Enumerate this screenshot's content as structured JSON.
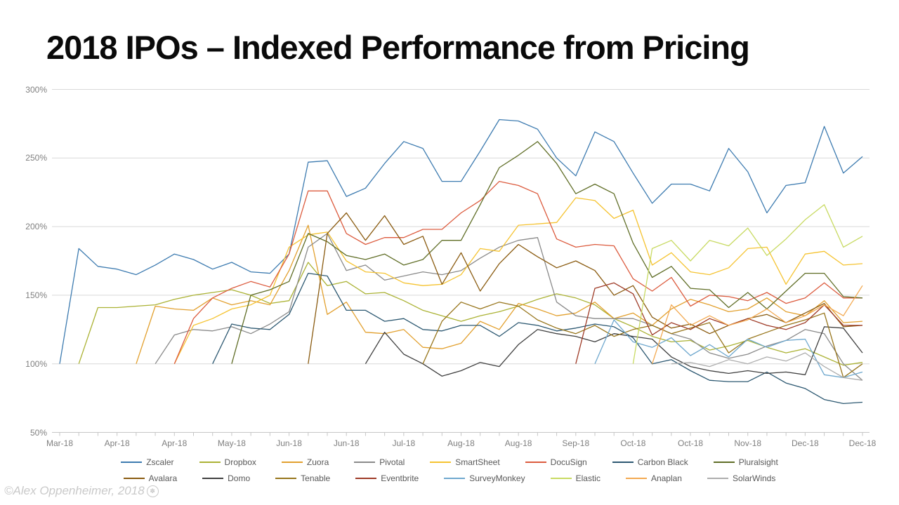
{
  "title": "2018 IPOs – Indexed Performance from Pricing",
  "copyright": {
    "text": "©Alex Oppenheimer, 2018",
    "icon": "flower-ornament-icon"
  },
  "colors": {
    "background": "#FFFFFF",
    "title_text": "#0A0A0A",
    "gridline": "#D9D9D9",
    "axis_line": "#C6C6C6",
    "axis_tick_text": "#7F7F7F",
    "legend_text": "#595959",
    "copyright_text": "#C9C9C9"
  },
  "chart_data": {
    "type": "line",
    "title": "2018 IPOs – Indexed Performance from Pricing",
    "grid": true,
    "legend_position": "bottom",
    "y_axis": {
      "min": 50,
      "max": 300,
      "step": 50,
      "unit": "%",
      "tick_labels": [
        "300%",
        "250%",
        "200%",
        "150%",
        "100%",
        "50%"
      ],
      "tick_values": [
        300,
        250,
        200,
        150,
        100,
        50
      ]
    },
    "x_axis": {
      "weeks_total": 43,
      "tick_label_positions": [
        0,
        3,
        6,
        9,
        12,
        15,
        18,
        21,
        24,
        27,
        30,
        33,
        36,
        39,
        42
      ],
      "tick_labels": [
        "Mar-18",
        "Apr-18",
        "Apr-18",
        "May-18",
        "Jun-18",
        "Jun-18",
        "Jul-18",
        "Aug-18",
        "Aug-18",
        "Sep-18",
        "Oct-18",
        "Oct-18",
        "Nov-18",
        "Dec-18",
        "Dec-18"
      ]
    },
    "series": [
      {
        "name": "Zscaler",
        "color": "#3D7BB0",
        "start_week": 0,
        "values": [
          100,
          184,
          171,
          169,
          165,
          172,
          180,
          176,
          169,
          174,
          167,
          166,
          180,
          247,
          248,
          222,
          228,
          246,
          262,
          257,
          233,
          233,
          255,
          278,
          277,
          271,
          250,
          237,
          269,
          262,
          239,
          217,
          231,
          231,
          226,
          257,
          240,
          210,
          230,
          232,
          273,
          239,
          251
        ]
      },
      {
        "name": "Dropbox",
        "color": "#ABB234",
        "start_week": 1,
        "values": [
          100,
          141,
          141,
          142,
          143,
          147,
          150,
          152,
          154,
          150,
          144,
          146,
          174,
          157,
          160,
          151,
          152,
          146,
          139,
          135,
          131,
          135,
          138,
          142,
          147,
          151,
          148,
          143,
          133,
          127,
          120,
          116,
          117,
          110,
          113,
          117,
          112,
          108,
          111,
          105,
          99,
          101
        ]
      },
      {
        "name": "Zuora",
        "color": "#E2A02E",
        "start_week": 4,
        "values": [
          100,
          142,
          140,
          139,
          148,
          143,
          146,
          143,
          168,
          201,
          136,
          145,
          123,
          122,
          125,
          112,
          111,
          115,
          131,
          125,
          144,
          140,
          135,
          137,
          145,
          133,
          137,
          128,
          140,
          147,
          143,
          138,
          140,
          148,
          138,
          135,
          146,
          130,
          131
        ]
      },
      {
        "name": "Pivotal",
        "color": "#8A8A8A",
        "start_week": 5,
        "values": [
          100,
          121,
          125,
          124,
          127,
          122,
          129,
          138,
          185,
          195,
          168,
          172,
          161,
          164,
          167,
          165,
          168,
          177,
          185,
          190,
          192,
          145,
          135,
          133,
          133,
          133,
          128,
          122,
          118,
          108,
          104,
          107,
          113,
          117,
          125,
          122,
          100,
          88
        ]
      },
      {
        "name": "SmartSheet",
        "color": "#F5C331",
        "start_week": 6,
        "values": [
          100,
          128,
          133,
          140,
          143,
          150,
          185,
          194,
          196,
          175,
          167,
          166,
          159,
          157,
          158,
          165,
          184,
          182,
          201,
          202,
          203,
          221,
          219,
          206,
          212,
          172,
          181,
          167,
          165,
          170,
          184,
          185,
          158,
          180,
          182,
          172,
          173
        ]
      },
      {
        "name": "DocuSign",
        "color": "#DC5B3E",
        "start_week": 6,
        "values": [
          100,
          133,
          148,
          155,
          160,
          156,
          180,
          226,
          226,
          195,
          187,
          192,
          192,
          198,
          198,
          210,
          219,
          233,
          230,
          224,
          191,
          185,
          187,
          186,
          162,
          153,
          163,
          142,
          150,
          149,
          146,
          152,
          144,
          148,
          159,
          148,
          148
        ]
      },
      {
        "name": "Carbon Black",
        "color": "#2C5871",
        "start_week": 8,
        "values": [
          100,
          129,
          126,
          125,
          136,
          166,
          164,
          139,
          139,
          131,
          133,
          125,
          124,
          128,
          128,
          120,
          130,
          128,
          124,
          126,
          129,
          127,
          119,
          100,
          103,
          95,
          88,
          87,
          87,
          94,
          86,
          82,
          74,
          71,
          72
        ]
      },
      {
        "name": "Pluralsight",
        "color": "#606E27",
        "start_week": 9,
        "values": [
          100,
          150,
          154,
          160,
          195,
          189,
          179,
          176,
          180,
          172,
          176,
          190,
          190,
          216,
          243,
          252,
          262,
          246,
          224,
          231,
          224,
          188,
          163,
          171,
          155,
          154,
          141,
          152,
          140,
          153,
          166,
          166,
          149,
          148
        ]
      },
      {
        "name": "Avalara",
        "color": "#8A5B10",
        "start_week": 13,
        "values": [
          100,
          195,
          210,
          190,
          208,
          187,
          193,
          158,
          181,
          153,
          173,
          187,
          178,
          170,
          175,
          168,
          150,
          157,
          134,
          126,
          129,
          122,
          128,
          133,
          136,
          130,
          137,
          144,
          127,
          128
        ]
      },
      {
        "name": "Domo",
        "color": "#3F3F3F",
        "start_week": 16,
        "values": [
          100,
          123,
          107,
          100,
          91,
          95,
          101,
          98,
          114,
          125,
          122,
          120,
          116,
          122,
          120,
          118,
          105,
          98,
          95,
          93,
          95,
          93,
          94,
          92,
          127,
          126,
          108
        ]
      },
      {
        "name": "Tenable",
        "color": "#97751B",
        "start_week": 19,
        "values": [
          100,
          131,
          145,
          140,
          145,
          142,
          132,
          126,
          122,
          128,
          120,
          125,
          128,
          122,
          126,
          130,
          108,
          118,
          123,
          128,
          132,
          137,
          90,
          100
        ]
      },
      {
        "name": "Eventbrite",
        "color": "#9E3A26",
        "start_week": 27,
        "values": [
          100,
          155,
          159,
          151,
          121,
          130,
          125,
          133,
          128,
          133,
          128,
          125,
          130,
          143,
          128,
          128
        ]
      },
      {
        "name": "SurveyMonkey",
        "color": "#6FA8CE",
        "start_week": 28,
        "values": [
          100,
          132,
          116,
          112,
          119,
          106,
          114,
          105,
          118,
          112,
          117,
          118,
          92,
          90,
          94
        ]
      },
      {
        "name": "Elastic",
        "color": "#C8DA62",
        "start_week": 30,
        "values": [
          100,
          184,
          190,
          175,
          190,
          186,
          199,
          179,
          191,
          205,
          216,
          185,
          193
        ]
      },
      {
        "name": "Anaplan",
        "color": "#F3A950",
        "start_week": 31,
        "values": [
          100,
          143,
          128,
          135,
          128,
          132,
          140,
          130,
          135,
          143,
          135,
          157
        ]
      },
      {
        "name": "SolarWinds",
        "color": "#ADADAD",
        "start_week": 32,
        "values": [
          100,
          101,
          98,
          103,
          100,
          105,
          102,
          108,
          98,
          90,
          88
        ]
      }
    ]
  }
}
